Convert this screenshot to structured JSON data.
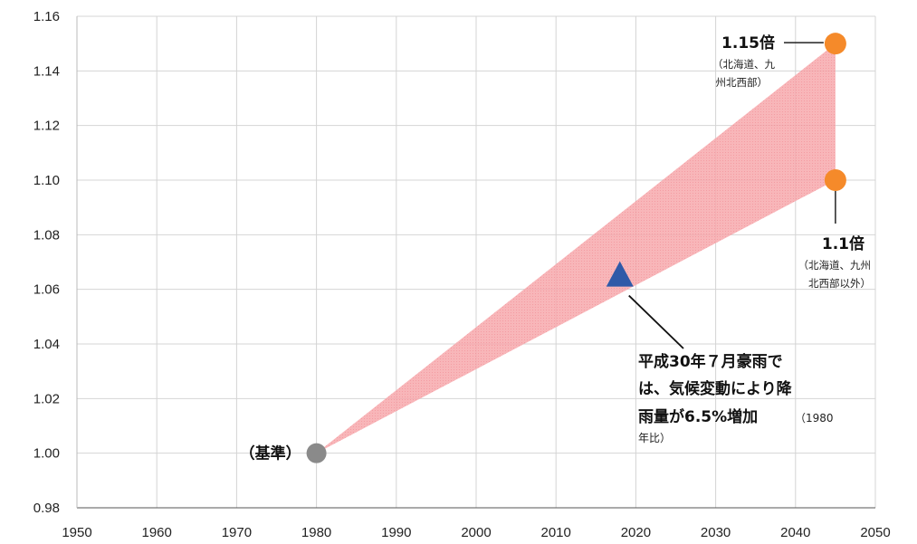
{
  "chart_data": {
    "type": "scatter",
    "xlim": [
      1950,
      2050
    ],
    "ylim": [
      0.98,
      1.16
    ],
    "x_ticks": [
      "1950",
      "1960",
      "1970",
      "1980",
      "1990",
      "2000",
      "2010",
      "2020",
      "2030",
      "2040",
      "2050"
    ],
    "y_ticks": [
      "0.98",
      "1.00",
      "1.02",
      "1.04",
      "1.06",
      "1.08",
      "1.10",
      "1.12",
      "1.14",
      "1.16"
    ],
    "grid": true,
    "band": {
      "from": {
        "x": 1980,
        "y": 1.0
      },
      "to_upper": {
        "x": 2045,
        "y": 1.15
      },
      "to_lower": {
        "x": 2045,
        "y": 1.1
      },
      "color": "#f7a1a6"
    },
    "points": [
      {
        "x": 1980,
        "y": 1.0,
        "marker": "circle",
        "color": "#8a8a8a",
        "label": "（基準）"
      },
      {
        "x": 2045,
        "y": 1.15,
        "marker": "circle",
        "color": "#f58a2a",
        "label": "1.15倍",
        "sublabel_1": "（北海道、九",
        "sublabel_2": "州北西部）"
      },
      {
        "x": 2045,
        "y": 1.1,
        "marker": "circle",
        "color": "#f58a2a",
        "label": "1.1倍",
        "sublabel_1": "（北海道、九州",
        "sublabel_2": "北西部以外）"
      },
      {
        "x": 2018,
        "y": 1.065,
        "marker": "triangle",
        "color": "#2f5aa8"
      }
    ],
    "annotation": {
      "line1": "平成30年７月豪雨で",
      "line2": "は、気候変動により降",
      "line3_big": "雨量が6.5%増加",
      "line3_small": "（1980",
      "line4": "年比）"
    }
  }
}
